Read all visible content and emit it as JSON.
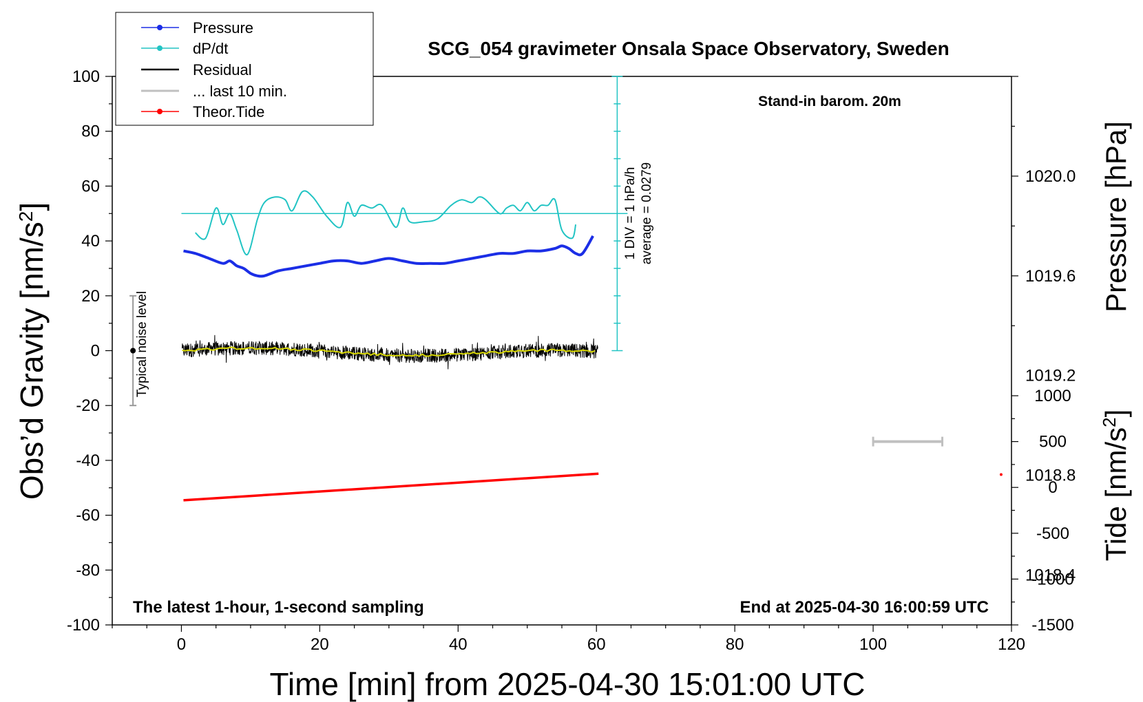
{
  "chart_data": {
    "type": "line",
    "title": "SCG_054 gravimeter Onsala Space Observatory, Sweden",
    "xlabel": "Time [min] from 2025-04-30 15:01:00 UTC",
    "xlim": [
      -10,
      120
    ],
    "x_ticks": [
      "0",
      "20",
      "40",
      "60",
      "80",
      "100",
      "120"
    ],
    "y_left": {
      "label_main": "Obs’d Gravity [nm/s",
      "label_sup": "2",
      "label_end": "]",
      "lim": [
        -100,
        100
      ],
      "ticks": [
        "100",
        "80",
        "60",
        "40",
        "20",
        "0",
        "-20",
        "-40",
        "-60",
        "-80",
        "-100"
      ]
    },
    "y_right_pressure": {
      "label": "Pressure [hPa]",
      "lim": [
        1018.2,
        1020.4
      ],
      "ticks": [
        "1020.0",
        "1019.6",
        "1019.2",
        "1018.8",
        "1018.4"
      ]
    },
    "y_right_tide": {
      "label_main": "Tide [nm/s",
      "label_sup": "2",
      "label_end": "]",
      "lim": [
        -1500,
        1000
      ],
      "ticks": [
        "1000",
        "500",
        "0",
        "-500",
        "-1000",
        "-1500"
      ]
    },
    "legend": {
      "placement": "top-left",
      "entries": [
        "Pressure",
        "dP/dt",
        "Residual",
        "... last 10 min.",
        "Theor.Tide"
      ]
    },
    "colors": {
      "pressure": "#1b2ee6",
      "dpdt": "#22c4c4",
      "residual": "#000000",
      "last10": "#c0c0c0",
      "tide": "#ff0000",
      "smooth": "#d8d800"
    },
    "annotations": {
      "stand_in": "Stand-in barom. 20m",
      "latest": "The latest 1-hour, 1-second sampling",
      "end_at": "End at 2025-04-30 16:00:59 UTC",
      "noise": "Typical noise level",
      "div": "1 DIV = 1 hPa/h",
      "average": "average = 0.0279"
    },
    "series": [
      {
        "name": "Pressure",
        "axis": "pressure",
        "x": [
          0.3,
          2,
          4,
          6,
          7,
          8,
          9,
          10,
          11,
          12,
          14,
          16,
          18,
          20,
          22,
          24,
          26,
          28,
          30,
          32,
          34,
          36,
          38,
          40,
          42,
          44,
          46,
          48,
          50,
          52,
          54,
          55,
          56,
          57,
          58,
          59.5
        ],
        "y": [
          1019.7,
          1019.69,
          1019.67,
          1019.65,
          1019.66,
          1019.64,
          1019.63,
          1019.61,
          1019.6,
          1019.6,
          1019.62,
          1019.63,
          1019.64,
          1019.65,
          1019.66,
          1019.66,
          1019.65,
          1019.66,
          1019.67,
          1019.66,
          1019.65,
          1019.65,
          1019.65,
          1019.66,
          1019.67,
          1019.68,
          1019.69,
          1019.69,
          1019.7,
          1019.7,
          1019.71,
          1019.72,
          1019.71,
          1019.69,
          1019.69,
          1019.76
        ]
      },
      {
        "name": "dP/dt",
        "axis": "gravity",
        "x": [
          2,
          3.5,
          5,
          6,
          7,
          8,
          9.5,
          11,
          12,
          13.5,
          15,
          16,
          17.5,
          19,
          21,
          23,
          24,
          25,
          26,
          27.5,
          29,
          31,
          32,
          33,
          35,
          37,
          39,
          40.5,
          42,
          43,
          44,
          46,
          47,
          48,
          49,
          50,
          51,
          52,
          53,
          54,
          55,
          56.5,
          57
        ],
        "y": [
          43,
          41,
          52,
          46,
          50,
          44,
          35,
          48,
          54,
          56,
          55,
          51,
          58,
          56,
          49,
          45,
          54,
          49,
          53,
          52,
          53,
          45,
          52,
          47,
          47,
          48,
          53,
          55,
          54,
          56,
          55,
          50,
          52,
          53,
          51,
          54,
          51,
          53,
          53,
          55,
          44,
          41,
          46
        ]
      },
      {
        "name": "Theor.Tide",
        "axis": "tide",
        "x": [
          0.3,
          60.3,
          118.5
        ],
        "y": [
          -140,
          150,
          140
        ]
      }
    ],
    "residual": {
      "x_range": [
        0.1,
        60.2
      ],
      "center": 0,
      "amplitude": 2.6,
      "samples": 1300
    },
    "noise_bar": {
      "x": -7,
      "y_center": 0,
      "y_range": [
        -20,
        20
      ]
    },
    "last10_bar": {
      "x_range": [
        100,
        110
      ],
      "tide_value": 500
    },
    "dpdt_scale": {
      "x": 63,
      "y_range": [
        0,
        100
      ],
      "center": 50,
      "divisions": 10
    }
  }
}
